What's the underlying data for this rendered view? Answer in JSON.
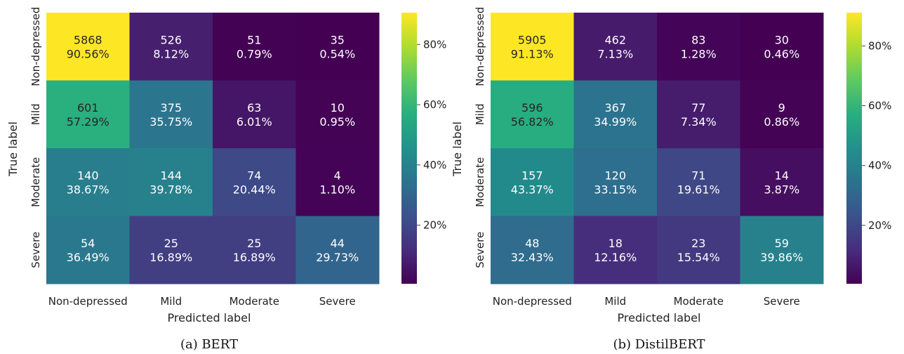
{
  "chart_data": [
    {
      "type": "heatmap",
      "caption": "(a) BERT",
      "xlabel": "Predicted label",
      "ylabel": "True label",
      "x_categories": [
        "Non-depressed",
        "Mild",
        "Moderate",
        "Severe"
      ],
      "y_categories": [
        "Non-depressed",
        "Mild",
        "Moderate",
        "Severe"
      ],
      "counts": [
        [
          5868,
          526,
          51,
          35
        ],
        [
          601,
          375,
          63,
          10
        ],
        [
          140,
          144,
          74,
          4
        ],
        [
          54,
          25,
          25,
          44
        ]
      ],
      "percents": [
        [
          "90.56%",
          "8.12%",
          "0.79%",
          "0.54%"
        ],
        [
          "57.29%",
          "35.75%",
          "6.01%",
          "0.95%"
        ],
        [
          "38.67%",
          "39.78%",
          "20.44%",
          "1.10%"
        ],
        [
          "36.49%",
          "16.89%",
          "16.89%",
          "29.73%"
        ]
      ],
      "colorbar": {
        "ticks": [
          "20%",
          "40%",
          "60%",
          "80%"
        ],
        "range": [
          0.54,
          90.56
        ],
        "colormap": "viridis"
      }
    },
    {
      "type": "heatmap",
      "caption": "(b) DistilBERT",
      "xlabel": "Predicted label",
      "ylabel": "True label",
      "x_categories": [
        "Non-depressed",
        "Mild",
        "Moderate",
        "Severe"
      ],
      "y_categories": [
        "Non-depressed",
        "Mild",
        "Moderate",
        "Severe"
      ],
      "counts": [
        [
          5905,
          462,
          83,
          30
        ],
        [
          596,
          367,
          77,
          9
        ],
        [
          157,
          120,
          71,
          14
        ],
        [
          48,
          18,
          23,
          59
        ]
      ],
      "percents": [
        [
          "91.13%",
          "7.13%",
          "1.28%",
          "0.46%"
        ],
        [
          "56.82%",
          "34.99%",
          "7.34%",
          "0.86%"
        ],
        [
          "43.37%",
          "33.15%",
          "19.61%",
          "3.87%"
        ],
        [
          "32.43%",
          "12.16%",
          "15.54%",
          "39.86%"
        ]
      ],
      "colorbar": {
        "ticks": [
          "20%",
          "40%",
          "60%",
          "80%"
        ],
        "range": [
          0.46,
          91.13
        ],
        "colormap": "viridis"
      }
    }
  ]
}
